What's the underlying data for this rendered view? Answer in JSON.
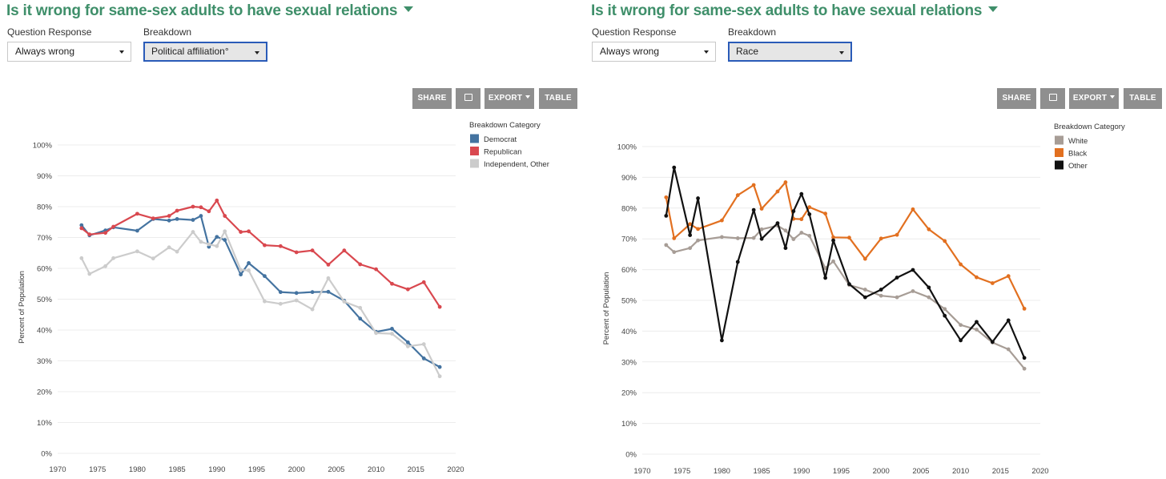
{
  "colors": {
    "title": "#3f8f6a",
    "button_bg": "#8f8f8f",
    "democrat": "#4473a0",
    "republican": "#d9484f",
    "independent": "#cccccc",
    "white": "#a79d96",
    "black": "#e27020",
    "other": "#111111",
    "gridline": "#ececec"
  },
  "panels": [
    {
      "title": "Is it wrong for same-sex adults to have sexual relations",
      "title_icon": "caret-down-icon",
      "question_response": {
        "label": "Question Response",
        "value": "Always wrong"
      },
      "breakdown": {
        "label": "Breakdown",
        "value": "Political affiliation°"
      },
      "toolbar": {
        "share": "SHARE",
        "print_icon": "print-icon",
        "export": "EXPORT",
        "table": "TABLE"
      },
      "legend_title": "Breakdown Category"
    },
    {
      "title": "Is it wrong for same-sex adults to have sexual relations",
      "title_icon": "caret-down-icon",
      "question_response": {
        "label": "Question Response",
        "value": "Always wrong"
      },
      "breakdown": {
        "label": "Breakdown",
        "value": "Race"
      },
      "toolbar": {
        "share": "SHARE",
        "print_icon": "print-icon",
        "export": "EXPORT",
        "table": "TABLE"
      },
      "legend_title": "Breakdown Category"
    }
  ],
  "chart_data": [
    {
      "type": "line",
      "title": "",
      "xlabel": "",
      "ylabel": "Percent of Population",
      "xlim": [
        1970,
        2020
      ],
      "ylim": [
        0,
        100
      ],
      "x_ticks": [
        1970,
        1975,
        1980,
        1985,
        1990,
        1995,
        2000,
        2005,
        2010,
        2015,
        2020
      ],
      "y_ticks": [
        0,
        10,
        20,
        30,
        40,
        50,
        60,
        70,
        80,
        90,
        100
      ],
      "y_tick_labels": [
        "0%",
        "10%",
        "20%",
        "30%",
        "40%",
        "50%",
        "60%",
        "70%",
        "80%",
        "90%",
        "100%"
      ],
      "grid": true,
      "legend_position": "top-right",
      "series": [
        {
          "name": "Democrat",
          "color": "#4473a0",
          "x": [
            1973,
            1974,
            1976,
            1977,
            1980,
            1982,
            1984,
            1985,
            1987,
            1988,
            1989,
            1990,
            1991,
            1993,
            1994,
            1996,
            1998,
            2000,
            2002,
            2004,
            2006,
            2008,
            2010,
            2012,
            2014,
            2016,
            2018
          ],
          "y": [
            74,
            70.7,
            72.3,
            73.3,
            72.2,
            76,
            75.5,
            76,
            75.7,
            77,
            67,
            70.2,
            69.2,
            58,
            61.7,
            57.5,
            52.3,
            52,
            52.3,
            52.4,
            49.5,
            43.7,
            39.4,
            40.4,
            36,
            30.8,
            28
          ]
        },
        {
          "name": "Republican",
          "color": "#d9484f",
          "x": [
            1973,
            1974,
            1976,
            1977,
            1980,
            1982,
            1984,
            1985,
            1987,
            1988,
            1989,
            1990,
            1991,
            1993,
            1994,
            1996,
            1998,
            2000,
            2002,
            2004,
            2006,
            2008,
            2010,
            2012,
            2014,
            2016,
            2018
          ],
          "y": [
            73,
            71,
            71.5,
            73.5,
            77.7,
            76.2,
            77,
            78.7,
            80,
            79.8,
            78.5,
            82,
            77,
            71.8,
            72,
            67.5,
            67.2,
            65.2,
            65.8,
            61.2,
            65.8,
            61.3,
            59.7,
            55,
            53.2,
            55.5,
            47.5
          ]
        },
        {
          "name": "Independent, Other",
          "color": "#cccccc",
          "x": [
            1973,
            1974,
            1976,
            1977,
            1980,
            1982,
            1984,
            1985,
            1987,
            1988,
            1989,
            1990,
            1991,
            1993,
            1994,
            1996,
            1998,
            2000,
            2002,
            2004,
            2006,
            2008,
            2010,
            2012,
            2014,
            2016,
            2018
          ],
          "y": [
            63.3,
            58.2,
            60.7,
            63.3,
            65.5,
            63.2,
            66.8,
            65.4,
            71.8,
            68.6,
            67.8,
            67.2,
            72,
            59.5,
            59.3,
            49.3,
            48.5,
            49.6,
            46.7,
            56.8,
            49.2,
            47.2,
            39,
            38.8,
            34.7,
            35.4,
            25
          ]
        }
      ]
    },
    {
      "type": "line",
      "title": "",
      "xlabel": "",
      "ylabel": "Percent of Population",
      "xlim": [
        1970,
        2020
      ],
      "ylim": [
        0,
        100
      ],
      "x_ticks": [
        1970,
        1975,
        1980,
        1985,
        1990,
        1995,
        2000,
        2005,
        2010,
        2015,
        2020
      ],
      "y_ticks": [
        0,
        10,
        20,
        30,
        40,
        50,
        60,
        70,
        80,
        90,
        100
      ],
      "y_tick_labels": [
        "0%",
        "10%",
        "20%",
        "30%",
        "40%",
        "50%",
        "60%",
        "70%",
        "80%",
        "90%",
        "100%"
      ],
      "grid": true,
      "legend_position": "top-right",
      "series": [
        {
          "name": "White",
          "color": "#a79d96",
          "x": [
            1973,
            1974,
            1976,
            1977,
            1980,
            1982,
            1984,
            1985,
            1987,
            1988,
            1989,
            1990,
            1991,
            1993,
            1994,
            1996,
            1998,
            2000,
            2002,
            2004,
            2006,
            2008,
            2010,
            2012,
            2014,
            2016,
            2018
          ],
          "y": [
            68,
            65.7,
            67,
            69.5,
            70.6,
            70.2,
            70.3,
            73.1,
            74.3,
            72.7,
            69.9,
            72,
            71,
            60.5,
            62.7,
            55,
            53.5,
            51.5,
            51,
            53,
            51,
            47.2,
            42,
            40.5,
            36.3,
            34.1,
            27.8
          ]
        },
        {
          "name": "Black",
          "color": "#e27020",
          "x": [
            1973,
            1974,
            1976,
            1977,
            1980,
            1982,
            1984,
            1985,
            1987,
            1988,
            1989,
            1990,
            1991,
            1993,
            1994,
            1996,
            1998,
            2000,
            2002,
            2004,
            2006,
            2008,
            2010,
            2012,
            2014,
            2016,
            2018
          ],
          "y": [
            83.5,
            70.2,
            74.8,
            73.2,
            76,
            84.2,
            87.5,
            79.8,
            85.4,
            88.4,
            76.5,
            76.4,
            80.3,
            78.2,
            70.5,
            70.4,
            63.5,
            70.1,
            71.3,
            79.6,
            73.1,
            69.3,
            61.7,
            57.5,
            55.6,
            57.9,
            47.3
          ]
        },
        {
          "name": "Other",
          "color": "#111111",
          "x": [
            1973,
            1974,
            1976,
            1977,
            1980,
            1982,
            1984,
            1985,
            1987,
            1988,
            1989,
            1990,
            1991,
            1993,
            1994,
            1996,
            1998,
            2000,
            2002,
            2004,
            2006,
            2008,
            2010,
            2012,
            2014,
            2016,
            2018
          ],
          "y": [
            77.5,
            93.2,
            71.2,
            83.2,
            37,
            62.5,
            79.4,
            70,
            75.1,
            67,
            79,
            84.6,
            78,
            57.3,
            69.5,
            55.3,
            51,
            53.5,
            57.4,
            59.9,
            54.2,
            45,
            37,
            43,
            36.5,
            43.5,
            31.3
          ]
        }
      ]
    }
  ]
}
